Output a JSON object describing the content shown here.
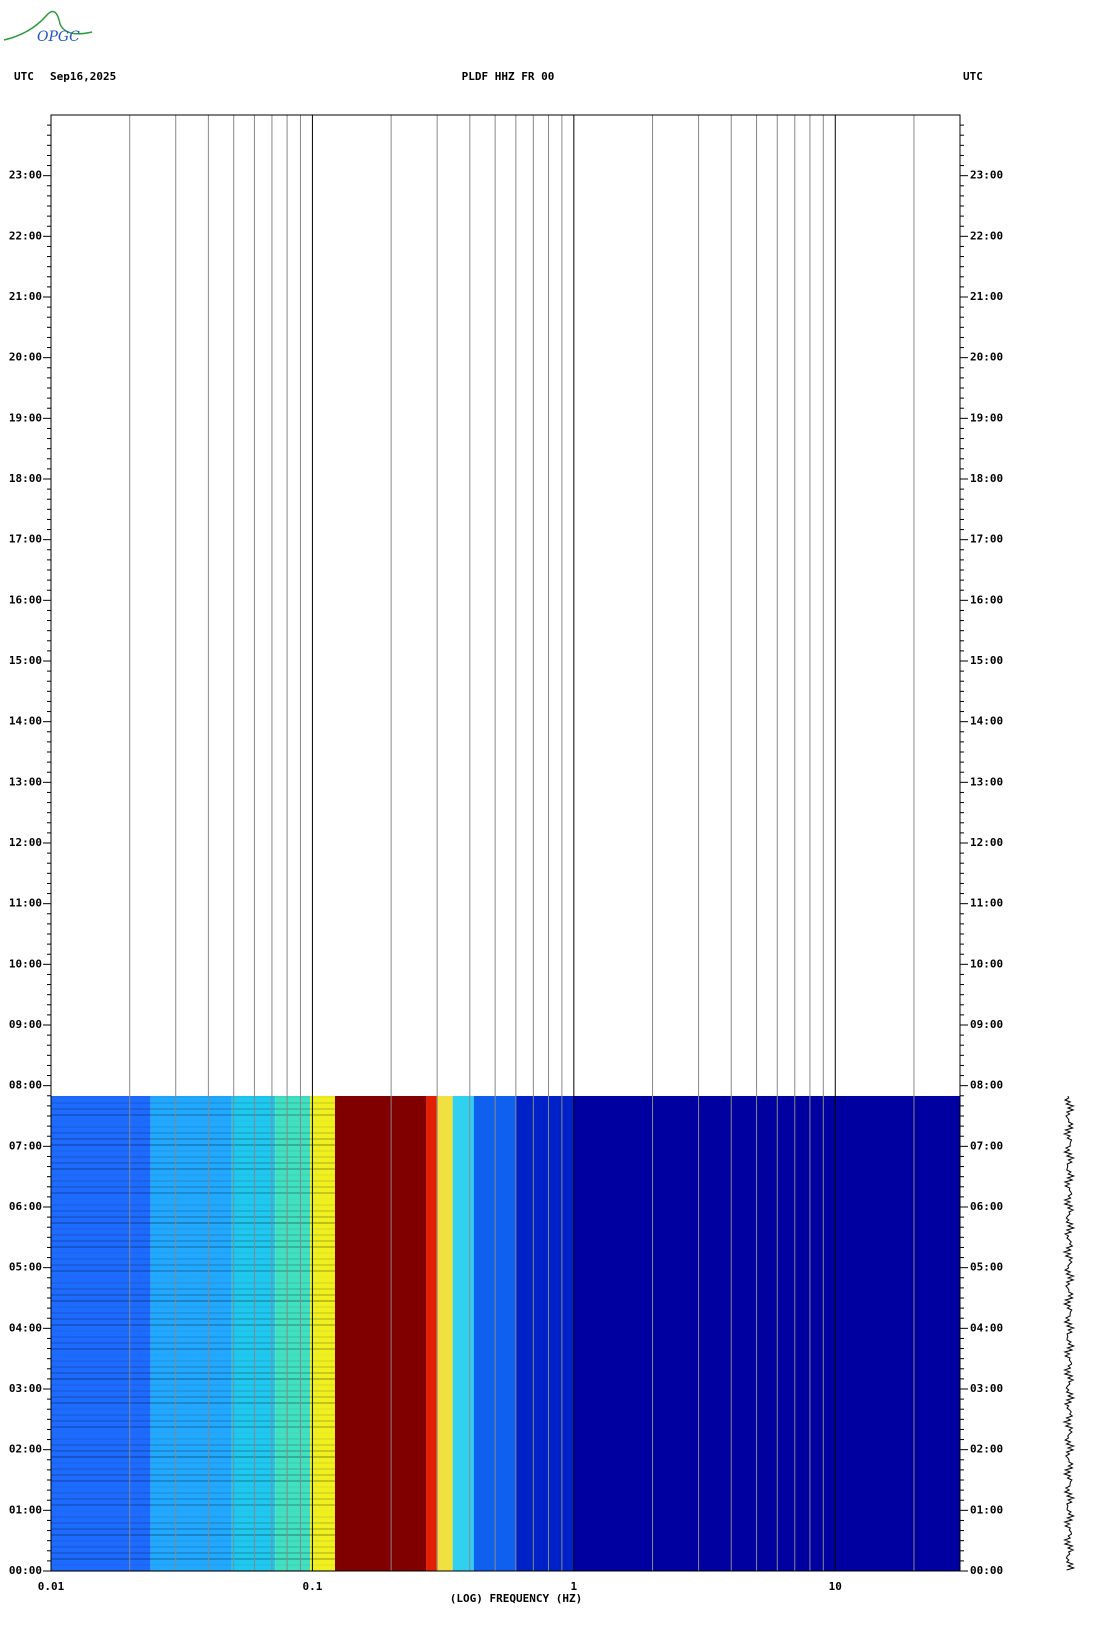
{
  "chart_data": {
    "type": "spectrogram",
    "logo": "OPGC",
    "time_zone_label": "UTC",
    "date": "Sep16,2025",
    "title": "PLDF HHZ FR 00",
    "x_label": "(LOG) FREQUENCY (HZ)",
    "xscale": "log",
    "xlim": [
      0.01,
      30
    ],
    "xticks": [
      0.01,
      0.1,
      1,
      10
    ],
    "xgrid": [
      0.02,
      0.03,
      0.04,
      0.05,
      0.06,
      0.07,
      0.08,
      0.09,
      0.2,
      0.3,
      0.4,
      0.5,
      0.6,
      0.7,
      0.8,
      0.9,
      2,
      3,
      4,
      5,
      6,
      7,
      8,
      9,
      20
    ],
    "ylim": [
      0,
      24
    ],
    "yticks": [
      {
        "value": 0,
        "label": "00:00"
      },
      {
        "value": 1,
        "label": "01:00"
      },
      {
        "value": 2,
        "label": "02:00"
      },
      {
        "value": 3,
        "label": "03:00"
      },
      {
        "value": 4,
        "label": "04:00"
      },
      {
        "value": 5,
        "label": "05:00"
      },
      {
        "value": 6,
        "label": "06:00"
      },
      {
        "value": 7,
        "label": "07:00"
      },
      {
        "value": 8,
        "label": "08:00"
      },
      {
        "value": 9,
        "label": "09:00"
      },
      {
        "value": 10,
        "label": "10:00"
      },
      {
        "value": 11,
        "label": "11:00"
      },
      {
        "value": 12,
        "label": "12:00"
      },
      {
        "value": 13,
        "label": "13:00"
      },
      {
        "value": 14,
        "label": "14:00"
      },
      {
        "value": 15,
        "label": "15:00"
      },
      {
        "value": 16,
        "label": "16:00"
      },
      {
        "value": 17,
        "label": "17:00"
      },
      {
        "value": 18,
        "label": "18:00"
      },
      {
        "value": 19,
        "label": "19:00"
      },
      {
        "value": 20,
        "label": "20:00"
      },
      {
        "value": 21,
        "label": "21:00"
      },
      {
        "value": 22,
        "label": "22:00"
      },
      {
        "value": 23,
        "label": "23:00"
      }
    ],
    "data_end": 7.83,
    "bands": [
      {
        "from": 0.01,
        "to": 0.024,
        "color": "#1e6bff"
      },
      {
        "from": 0.024,
        "to": 0.049,
        "color": "#22a8ff"
      },
      {
        "from": 0.049,
        "to": 0.072,
        "color": "#20c8f0"
      },
      {
        "from": 0.072,
        "to": 0.098,
        "color": "#40e0c0"
      },
      {
        "from": 0.098,
        "to": 0.122,
        "color": "#f0f020"
      },
      {
        "from": 0.122,
        "to": 0.272,
        "color": "#800000"
      },
      {
        "from": 0.272,
        "to": 0.299,
        "color": "#e02000"
      },
      {
        "from": 0.299,
        "to": 0.344,
        "color": "#f0e040"
      },
      {
        "from": 0.344,
        "to": 0.414,
        "color": "#30d0f0"
      },
      {
        "from": 0.414,
        "to": 0.6,
        "color": "#1060f0"
      },
      {
        "from": 0.6,
        "to": 1,
        "color": "#0020c8"
      },
      {
        "from": 1,
        "to": 30,
        "color": "#0000a0"
      }
    ]
  }
}
